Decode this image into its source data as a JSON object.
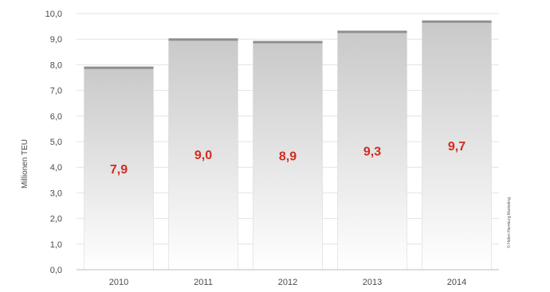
{
  "chart_data": {
    "type": "bar",
    "title": "",
    "xlabel": "",
    "ylabel": "Millionen TEU",
    "categories": [
      "2010",
      "2011",
      "2012",
      "2013",
      "2014"
    ],
    "values": [
      7.9,
      9.0,
      8.9,
      9.3,
      9.7
    ],
    "data_labels": [
      "7,9",
      "9,0",
      "8,9",
      "9,3",
      "9,7"
    ],
    "ylim": [
      0,
      10
    ],
    "yticks": [
      "0,0",
      "1,0",
      "2,0",
      "3,0",
      "4,0",
      "5,0",
      "6,0",
      "7,0",
      "8,0",
      "9,0",
      "10,0"
    ],
    "grid": true,
    "legend": "none",
    "credit": "© Hafen Hamburg Marketing",
    "colors": {
      "bar_top": "#c9c9c9",
      "bar_bottom": "#ffffff",
      "bar_cap": "#8f8f8f",
      "label": "#d42a1f",
      "grid": "#e3e3e3"
    }
  }
}
